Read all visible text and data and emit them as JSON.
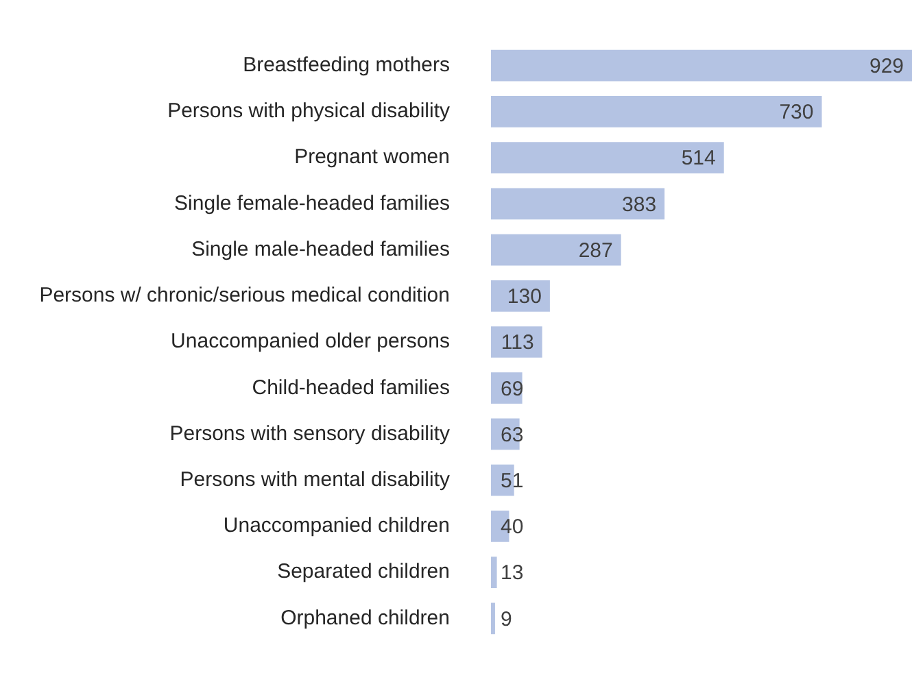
{
  "chart_data": {
    "type": "bar",
    "orientation": "horizontal",
    "data_labels": true,
    "tick_labels": "y",
    "categories": [
      "Breastfeeding mothers",
      "Persons with physical disability",
      "Pregnant women",
      "Single female-headed families",
      "Single male-headed families",
      "Persons w/ chronic/serious medical condition",
      "Unaccompanied older persons",
      "Child-headed families",
      "Persons with sensory disability",
      "Persons with mental disability",
      "Unaccompanied children",
      "Separated children",
      "Orphaned children"
    ],
    "values": [
      929,
      730,
      514,
      383,
      287,
      130,
      113,
      69,
      63,
      51,
      40,
      13,
      9
    ],
    "color": "#b4c3e3"
  }
}
